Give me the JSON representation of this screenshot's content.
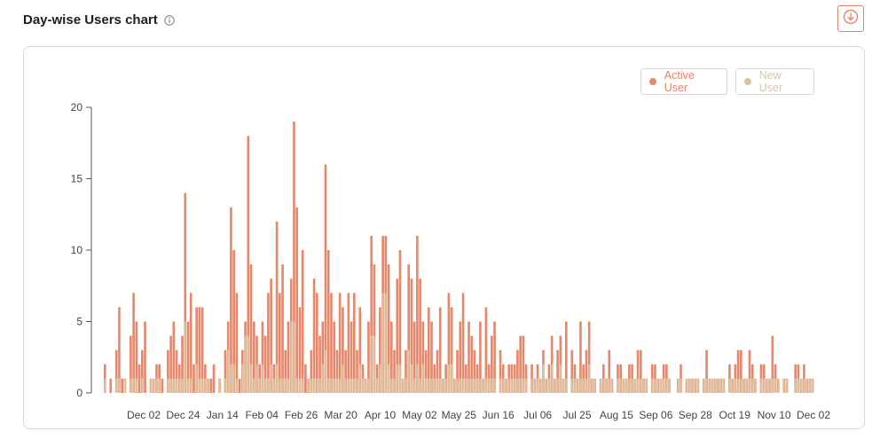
{
  "header": {
    "title": "Day-wise Users chart",
    "info_icon": "info-icon",
    "download_icon": "download-icon"
  },
  "colors": {
    "active": "#e8866a",
    "new": "#d9c4a0",
    "axis": "#555555",
    "accent": "#e8826a"
  },
  "legend": [
    {
      "label": "Active User",
      "color": "#e8866a",
      "text_color": "#e8826a"
    },
    {
      "label": "New User",
      "color": "#d9c4a0",
      "text_color": "#d8c7a6"
    }
  ],
  "chart_data": {
    "type": "bar",
    "title": "Day-wise Users chart",
    "xlabel": "",
    "ylabel": "",
    "ylim": [
      0,
      20
    ],
    "yticks": [
      0,
      5,
      10,
      15,
      20
    ],
    "xtick_labels": [
      "Dec 02",
      "Dec 24",
      "Jan 14",
      "Feb 04",
      "Feb 26",
      "Mar 20",
      "Apr 10",
      "May 02",
      "May 25",
      "Jun 16",
      "Jul 06",
      "Jul 25",
      "Aug 15",
      "Sep 06",
      "Sep 28",
      "Oct 19",
      "Nov 10",
      "Dec 02"
    ],
    "legend_position": "top-right",
    "grid": false,
    "series": [
      {
        "name": "Active User",
        "values": [
          2,
          0,
          1,
          0,
          3,
          6,
          1,
          1,
          0,
          4,
          7,
          5,
          2,
          3,
          5,
          0,
          1,
          1,
          2,
          2,
          1,
          0,
          3,
          4,
          5,
          3,
          2,
          4,
          14,
          5,
          7,
          2,
          6,
          6,
          6,
          2,
          1,
          1,
          2,
          0,
          1,
          0,
          3,
          5,
          13,
          10,
          7,
          1,
          3,
          5,
          18,
          9,
          5,
          4,
          2,
          5,
          4,
          7,
          8,
          2,
          12,
          7,
          9,
          3,
          5,
          8,
          19,
          13,
          6,
          10,
          2,
          1,
          3,
          8,
          7,
          4,
          5,
          16,
          10,
          7,
          5,
          3,
          7,
          6,
          3,
          7,
          5,
          7,
          3,
          6,
          2,
          1,
          5,
          11,
          9,
          2,
          6,
          11,
          11,
          9,
          5,
          3,
          8,
          10,
          1,
          3,
          9,
          8,
          5,
          11,
          8,
          5,
          3,
          6,
          5,
          2,
          3,
          6,
          1,
          2,
          7,
          6,
          1,
          3,
          5,
          7,
          2,
          5,
          4,
          3,
          2,
          5,
          1,
          6,
          2,
          4,
          5,
          0,
          3,
          2,
          1,
          2,
          2,
          2,
          3,
          4,
          4,
          2,
          0,
          2,
          1,
          2,
          1,
          3,
          1,
          2,
          4,
          1,
          3,
          4,
          1,
          5,
          0,
          3,
          2,
          1,
          5,
          2,
          3,
          5,
          1,
          1,
          0,
          1,
          2,
          1,
          3,
          1,
          0,
          2,
          2,
          1,
          1,
          2,
          2,
          1,
          3,
          3,
          1,
          1,
          0,
          2,
          2,
          1,
          1,
          2,
          2,
          1,
          0,
          0,
          1,
          2,
          0,
          1,
          1,
          1,
          1,
          1,
          0,
          1,
          3,
          1,
          1,
          1,
          1,
          1,
          1,
          0,
          2,
          1,
          2,
          3,
          3,
          1,
          1,
          3,
          2,
          1,
          0,
          2,
          2,
          1,
          1,
          4,
          2,
          1,
          0,
          1,
          1,
          0,
          0,
          2,
          2,
          1,
          2,
          1,
          1,
          1
        ]
      },
      {
        "name": "New User",
        "values": [
          1,
          0,
          0,
          0,
          1,
          1,
          0,
          1,
          0,
          1,
          1,
          1,
          0,
          1,
          0,
          0,
          1,
          1,
          1,
          1,
          0,
          0,
          1,
          1,
          1,
          1,
          1,
          1,
          5,
          1,
          1,
          0,
          2,
          1,
          1,
          1,
          1,
          0,
          0,
          0,
          1,
          0,
          1,
          3,
          2,
          2,
          1,
          0,
          2,
          4,
          4,
          2,
          1,
          2,
          1,
          2,
          1,
          1,
          2,
          1,
          2,
          1,
          1,
          1,
          1,
          5,
          5,
          1,
          1,
          1,
          0,
          1,
          1,
          1,
          1,
          1,
          2,
          3,
          1,
          1,
          1,
          1,
          1,
          2,
          1,
          1,
          1,
          1,
          1,
          2,
          1,
          1,
          1,
          4,
          4,
          1,
          2,
          7,
          7,
          2,
          1,
          1,
          2,
          2,
          1,
          1,
          3,
          2,
          1,
          2,
          1,
          2,
          1,
          1,
          1,
          1,
          1,
          1,
          1,
          1,
          2,
          2,
          1,
          1,
          1,
          1,
          1,
          1,
          1,
          1,
          1,
          1,
          1,
          1,
          1,
          1,
          1,
          0,
          1,
          1,
          1,
          1,
          1,
          1,
          1,
          1,
          1,
          1,
          0,
          1,
          1,
          1,
          1,
          2,
          1,
          1,
          2,
          1,
          1,
          2,
          1,
          1,
          0,
          1,
          1,
          1,
          1,
          1,
          1,
          2,
          1,
          1,
          0,
          1,
          1,
          1,
          1,
          1,
          0,
          1,
          1,
          1,
          1,
          1,
          1,
          1,
          1,
          1,
          1,
          1,
          0,
          1,
          1,
          1,
          1,
          1,
          1,
          1,
          0,
          0,
          1,
          1,
          0,
          1,
          1,
          1,
          1,
          1,
          0,
          1,
          1,
          1,
          1,
          1,
          1,
          1,
          1,
          0,
          1,
          1,
          1,
          1,
          1,
          1,
          1,
          1,
          1,
          1,
          0,
          1,
          1,
          1,
          1,
          1,
          1,
          1,
          0,
          1,
          1,
          0,
          0,
          1,
          1,
          1,
          1,
          1,
          1,
          1
        ]
      }
    ]
  }
}
